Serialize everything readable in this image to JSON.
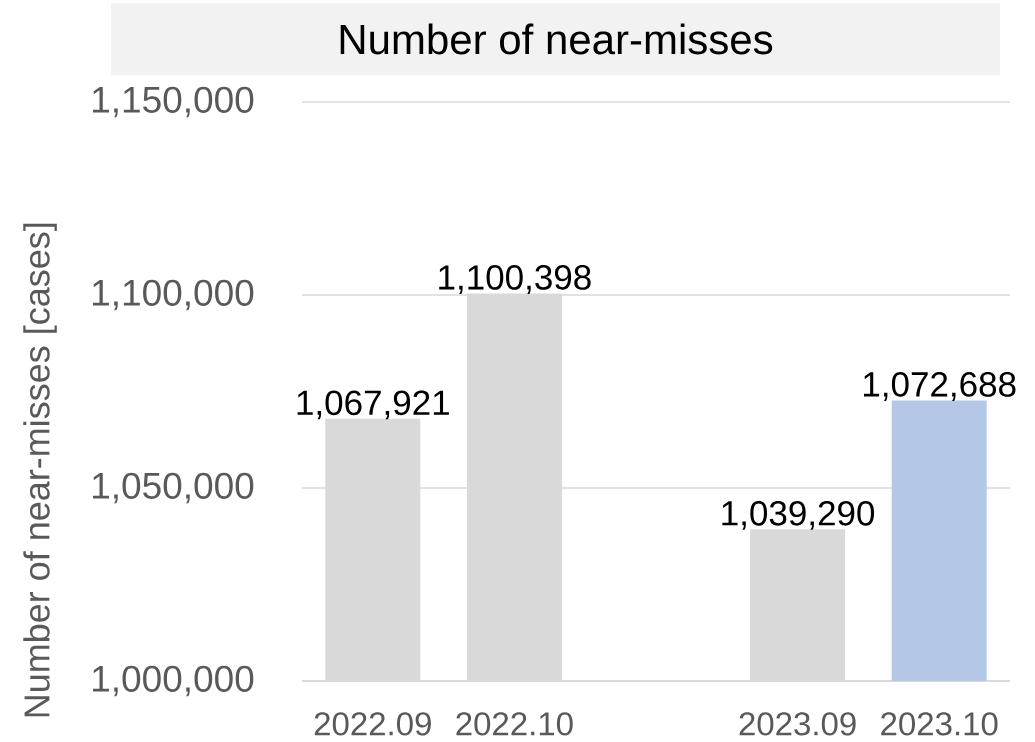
{
  "chart_data": {
    "type": "bar",
    "title": "Number of near-misses",
    "ylabel": "Number of near-misses [cases]",
    "categories": [
      "2022.09",
      "2022.10",
      null,
      "2023.09",
      "2023.10"
    ],
    "values": [
      1067921,
      1100398,
      null,
      1039290,
      1072688
    ],
    "colors": [
      "#d9d9d9",
      "#d9d9d9",
      null,
      "#d9d9d9",
      "#b4c7e7"
    ],
    "value_labels": [
      "1,067,921",
      "1,100,398",
      null,
      "1,039,290",
      "1,072,688"
    ],
    "ylim": [
      1000000,
      1150000
    ],
    "yticks": [
      {
        "value": 1000000,
        "label": "1,000,000"
      },
      {
        "value": 1050000,
        "label": "1,050,000"
      },
      {
        "value": 1100000,
        "label": "1,100,000"
      },
      {
        "value": 1150000,
        "label": "1,150,000"
      }
    ],
    "grid": "y"
  }
}
